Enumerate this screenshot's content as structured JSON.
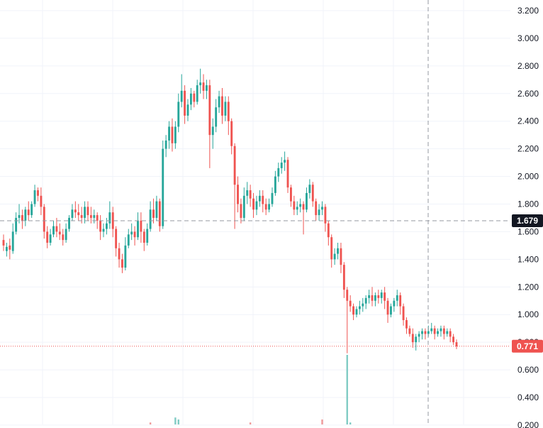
{
  "chart_data": {
    "type": "candlestick",
    "y_axis": {
      "position": "right",
      "ticks": [
        "0.200",
        "0.400",
        "0.600",
        "0.800",
        "1.000",
        "1.200",
        "1.400",
        "1.600",
        "1.800",
        "2.000",
        "2.200",
        "2.400",
        "2.600",
        "2.800",
        "3.000",
        "3.200"
      ],
      "range": [
        0.17,
        3.27
      ]
    },
    "crosshair": {
      "price_label": "1.679"
    },
    "last_price": {
      "label": "0.771",
      "color": "#ef5350"
    },
    "colors": {
      "up": "#26a69a",
      "down": "#ef5350",
      "volume_up": "#80cbc4",
      "volume_down": "#ef9a9a",
      "grid": "#f0f3fa"
    },
    "grid": true,
    "candles": [
      [
        1.54,
        1.58,
        1.5,
        1.46
      ],
      [
        1.46,
        1.52,
        1.49,
        1.42
      ],
      [
        1.5,
        1.55,
        1.47,
        1.4
      ],
      [
        1.46,
        1.66,
        1.6,
        1.44
      ],
      [
        1.6,
        1.74,
        1.7,
        1.58
      ],
      [
        1.7,
        1.8,
        1.72,
        1.66
      ],
      [
        1.72,
        1.76,
        1.68,
        1.62
      ],
      [
        1.68,
        1.78,
        1.76,
        1.64
      ],
      [
        1.76,
        1.82,
        1.72,
        1.68
      ],
      [
        1.72,
        1.82,
        1.8,
        1.7
      ],
      [
        1.8,
        1.94,
        1.9,
        1.78
      ],
      [
        1.9,
        1.92,
        1.86,
        1.82
      ],
      [
        1.86,
        1.92,
        1.78,
        1.72
      ],
      [
        1.78,
        1.8,
        1.6,
        1.55
      ],
      [
        1.6,
        1.64,
        1.52,
        1.48
      ],
      [
        1.52,
        1.62,
        1.58,
        1.5
      ],
      [
        1.58,
        1.68,
        1.64,
        1.56
      ],
      [
        1.64,
        1.7,
        1.6,
        1.56
      ],
      [
        1.6,
        1.66,
        1.58,
        1.54
      ],
      [
        1.58,
        1.62,
        1.54,
        1.5
      ],
      [
        1.54,
        1.66,
        1.62,
        1.52
      ],
      [
        1.62,
        1.72,
        1.7,
        1.6
      ],
      [
        1.7,
        1.8,
        1.76,
        1.68
      ],
      [
        1.76,
        1.82,
        1.74,
        1.7
      ],
      [
        1.74,
        1.8,
        1.72,
        1.68
      ],
      [
        1.72,
        1.78,
        1.7,
        1.66
      ],
      [
        1.7,
        1.82,
        1.78,
        1.66
      ],
      [
        1.78,
        1.82,
        1.72,
        1.68
      ],
      [
        1.72,
        1.78,
        1.7,
        1.66
      ],
      [
        1.7,
        1.76,
        1.72,
        1.66
      ],
      [
        1.72,
        1.74,
        1.68,
        1.62
      ],
      [
        1.68,
        1.72,
        1.6,
        1.54
      ],
      [
        1.6,
        1.66,
        1.62,
        1.56
      ],
      [
        1.62,
        1.7,
        1.66,
        1.58
      ],
      [
        1.66,
        1.82,
        1.74,
        1.62
      ],
      [
        1.74,
        1.78,
        1.62,
        1.56
      ],
      [
        1.62,
        1.64,
        1.48,
        1.42
      ],
      [
        1.48,
        1.52,
        1.4,
        1.34
      ],
      [
        1.4,
        1.44,
        1.34,
        1.3
      ],
      [
        1.34,
        1.56,
        1.5,
        1.32
      ],
      [
        1.5,
        1.62,
        1.58,
        1.48
      ],
      [
        1.58,
        1.66,
        1.6,
        1.54
      ],
      [
        1.6,
        1.64,
        1.56,
        1.5
      ],
      [
        1.56,
        1.74,
        1.68,
        1.54
      ],
      [
        1.68,
        1.74,
        1.6,
        1.52
      ],
      [
        1.6,
        1.62,
        1.52,
        1.46
      ],
      [
        1.52,
        1.66,
        1.62,
        1.5
      ],
      [
        1.62,
        1.82,
        1.76,
        1.6
      ],
      [
        1.76,
        1.84,
        1.7,
        1.66
      ],
      [
        1.7,
        1.86,
        1.82,
        1.68
      ],
      [
        1.82,
        1.84,
        1.64,
        1.6
      ],
      [
        1.64,
        2.26,
        2.2,
        1.62
      ],
      [
        2.2,
        2.3,
        2.26,
        2.14
      ],
      [
        2.26,
        2.4,
        2.36,
        2.2
      ],
      [
        2.36,
        2.42,
        2.24,
        2.18
      ],
      [
        2.24,
        2.4,
        2.36,
        2.2
      ],
      [
        2.36,
        2.6,
        2.54,
        2.32
      ],
      [
        2.54,
        2.74,
        2.62,
        2.5
      ],
      [
        2.62,
        2.66,
        2.44,
        2.38
      ],
      [
        2.44,
        2.56,
        2.52,
        2.4
      ],
      [
        2.52,
        2.64,
        2.6,
        2.48
      ],
      [
        2.6,
        2.62,
        2.54,
        2.5
      ],
      [
        2.54,
        2.7,
        2.66,
        2.52
      ],
      [
        2.66,
        2.78,
        2.68,
        2.6
      ],
      [
        2.68,
        2.74,
        2.62,
        2.56
      ],
      [
        2.62,
        2.7,
        2.66,
        2.56
      ],
      [
        2.66,
        2.7,
        2.3,
        2.06
      ],
      [
        2.3,
        2.42,
        2.36,
        2.2
      ],
      [
        2.36,
        2.56,
        2.5,
        2.32
      ],
      [
        2.5,
        2.62,
        2.58,
        2.46
      ],
      [
        2.58,
        2.64,
        2.44,
        2.38
      ],
      [
        2.44,
        2.58,
        2.54,
        2.4
      ],
      [
        2.54,
        2.58,
        2.4,
        2.3
      ],
      [
        2.4,
        2.42,
        2.22,
        2.16
      ],
      [
        2.22,
        2.24,
        1.94,
        1.62
      ],
      [
        1.94,
        2.0,
        1.8,
        1.74
      ],
      [
        1.8,
        1.84,
        1.7,
        1.66
      ],
      [
        1.7,
        1.92,
        1.86,
        1.68
      ],
      [
        1.86,
        1.96,
        1.9,
        1.8
      ],
      [
        1.9,
        1.94,
        1.84,
        1.78
      ],
      [
        1.84,
        1.88,
        1.76,
        1.7
      ],
      [
        1.76,
        1.86,
        1.82,
        1.72
      ],
      [
        1.82,
        1.9,
        1.86,
        1.78
      ],
      [
        1.86,
        1.9,
        1.8,
        1.74
      ],
      [
        1.8,
        1.84,
        1.76,
        1.72
      ],
      [
        1.76,
        1.84,
        1.8,
        1.74
      ],
      [
        1.8,
        1.92,
        1.88,
        1.78
      ],
      [
        1.88,
        2.04,
        2.0,
        1.86
      ],
      [
        2.0,
        2.1,
        2.06,
        1.96
      ],
      [
        2.06,
        2.14,
        2.1,
        2.02
      ],
      [
        2.1,
        2.18,
        2.12,
        2.04
      ],
      [
        2.12,
        2.14,
        1.92,
        1.88
      ],
      [
        1.92,
        1.94,
        1.82,
        1.78
      ],
      [
        1.82,
        1.86,
        1.76,
        1.72
      ],
      [
        1.76,
        1.82,
        1.78,
        1.72
      ],
      [
        1.78,
        1.84,
        1.8,
        1.74
      ],
      [
        1.8,
        1.82,
        1.76,
        1.58
      ],
      [
        1.76,
        1.92,
        1.88,
        1.74
      ],
      [
        1.88,
        1.98,
        1.94,
        1.84
      ],
      [
        1.94,
        1.96,
        1.82,
        1.78
      ],
      [
        1.82,
        1.84,
        1.72,
        1.68
      ],
      [
        1.72,
        1.8,
        1.76,
        1.68
      ],
      [
        1.76,
        1.82,
        1.78,
        1.72
      ],
      [
        1.78,
        1.8,
        1.66,
        1.6
      ],
      [
        1.66,
        1.68,
        1.56,
        1.5
      ],
      [
        1.56,
        1.58,
        1.4,
        1.34
      ],
      [
        1.4,
        1.48,
        1.44,
        1.36
      ],
      [
        1.44,
        1.52,
        1.48,
        1.4
      ],
      [
        1.48,
        1.52,
        1.36,
        1.3
      ],
      [
        1.36,
        1.38,
        1.18,
        1.12
      ],
      [
        1.18,
        1.2,
        1.1,
        0.72
      ],
      [
        1.1,
        1.14,
        1.06,
        1.02
      ],
      [
        1.06,
        1.08,
        1.0,
        0.96
      ],
      [
        1.0,
        1.06,
        1.04,
        0.98
      ],
      [
        1.04,
        1.1,
        1.06,
        1.0
      ],
      [
        1.06,
        1.12,
        1.08,
        1.02
      ],
      [
        1.08,
        1.14,
        1.12,
        1.04
      ],
      [
        1.12,
        1.18,
        1.14,
        1.08
      ],
      [
        1.14,
        1.2,
        1.1,
        1.06
      ],
      [
        1.1,
        1.16,
        1.14,
        1.06
      ],
      [
        1.14,
        1.18,
        1.12,
        1.08
      ],
      [
        1.12,
        1.18,
        1.16,
        1.08
      ],
      [
        1.16,
        1.2,
        1.1,
        1.04
      ],
      [
        1.1,
        1.12,
        1.0,
        0.94
      ],
      [
        1.0,
        1.08,
        1.06,
        0.98
      ],
      [
        1.06,
        1.12,
        1.1,
        1.02
      ],
      [
        1.1,
        1.18,
        1.14,
        1.06
      ],
      [
        1.14,
        1.16,
        1.06,
        1.0
      ],
      [
        1.06,
        1.08,
        0.96,
        0.92
      ],
      [
        0.96,
        0.98,
        0.9,
        0.86
      ],
      [
        0.9,
        0.92,
        0.86,
        0.84
      ],
      [
        0.86,
        0.9,
        0.8,
        0.76
      ],
      [
        0.8,
        0.86,
        0.84,
        0.74
      ],
      [
        0.84,
        0.88,
        0.86,
        0.8
      ],
      [
        0.86,
        0.9,
        0.88,
        0.82
      ],
      [
        0.88,
        0.9,
        0.86,
        0.82
      ],
      [
        0.86,
        0.92,
        0.88,
        0.84
      ],
      [
        0.88,
        0.94,
        0.9,
        0.86
      ],
      [
        0.9,
        0.92,
        0.86,
        0.82
      ],
      [
        0.86,
        0.9,
        0.88,
        0.84
      ],
      [
        0.88,
        0.92,
        0.9,
        0.84
      ],
      [
        0.9,
        0.92,
        0.86,
        0.82
      ],
      [
        0.86,
        0.9,
        0.88,
        0.84
      ],
      [
        0.88,
        0.9,
        0.84,
        0.8
      ],
      [
        0.84,
        0.86,
        0.8,
        0.78
      ],
      [
        0.8,
        0.82,
        0.77,
        0.75
      ]
    ],
    "volume": [
      {
        "i": 47,
        "v": 0.02,
        "up": false
      },
      {
        "i": 55,
        "v": 0.07,
        "up": true
      },
      {
        "i": 56,
        "v": 0.05,
        "up": true
      },
      {
        "i": 79,
        "v": 0.02,
        "up": false
      },
      {
        "i": 102,
        "v": 0.05,
        "up": false
      },
      {
        "i": 110,
        "v": 0.7,
        "up": true
      },
      {
        "i": 111,
        "v": 0.02,
        "up": true
      }
    ]
  }
}
